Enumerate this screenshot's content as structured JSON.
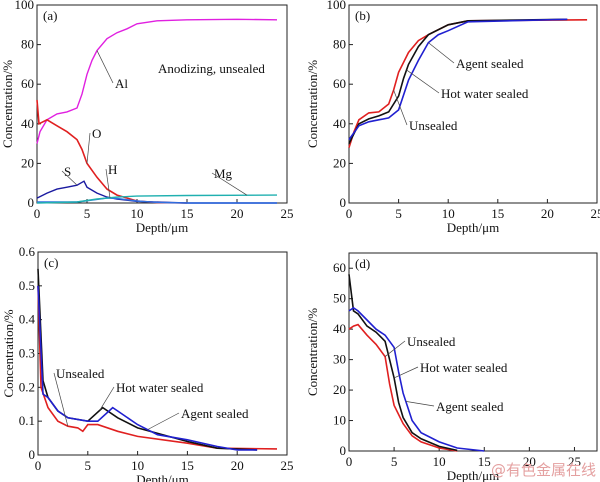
{
  "watermark": "@有色金属在线",
  "colors": {
    "Al": "#e020e0",
    "O": "#e02020",
    "S": "#1a1aa0",
    "H": "#3070e0",
    "Mg": "#20b0b0",
    "Unsealed": "#e02020",
    "Hot water sealed": "#111111",
    "Agent sealed": "#2020d0"
  },
  "chart_data": [
    {
      "type": "line",
      "panel_label": "(a)",
      "annotation": "Anodizing, unsealed",
      "xlabel": "Depth/μm",
      "ylabel": "Concentration/%",
      "xlim": [
        0,
        25
      ],
      "ylim": [
        0,
        100
      ],
      "xticks": [
        0,
        5,
        10,
        15,
        20,
        25
      ],
      "yticks": [
        0,
        20,
        40,
        60,
        80,
        100
      ],
      "grid": false,
      "series": [
        {
          "name": "Al",
          "x": [
            0,
            0.3,
            1,
            2,
            3,
            4,
            4.5,
            5,
            5.5,
            6,
            7,
            8,
            9,
            10,
            12,
            15,
            20,
            24
          ],
          "y": [
            30,
            36,
            42,
            45,
            46,
            48,
            55,
            65,
            72,
            77,
            83,
            86,
            88,
            90.5,
            92,
            92.5,
            92.8,
            92.5
          ]
        },
        {
          "name": "O",
          "x": [
            0,
            0.2,
            1,
            2,
            3,
            4,
            4.5,
            5,
            6,
            7,
            8,
            10,
            12,
            15
          ],
          "y": [
            52,
            40,
            42,
            39,
            36,
            32,
            27,
            20,
            13,
            7,
            4,
            1,
            0.2,
            0
          ]
        },
        {
          "name": "S",
          "x": [
            0,
            1,
            2,
            3,
            4,
            4.7,
            5,
            6,
            7,
            8,
            10,
            15,
            24
          ],
          "y": [
            2.5,
            5,
            7,
            8,
            9,
            11,
            8,
            5,
            3,
            2,
            0.8,
            0,
            0
          ]
        },
        {
          "name": "H",
          "x": [
            0,
            4,
            6,
            7,
            8,
            10,
            12,
            15,
            24
          ],
          "y": [
            0.5,
            0.5,
            1.8,
            2.5,
            2.3,
            1,
            0.3,
            0,
            0
          ]
        },
        {
          "name": "Mg",
          "x": [
            0,
            4,
            6,
            8,
            10,
            15,
            24
          ],
          "y": [
            0,
            0.5,
            2,
            3,
            3.5,
            3.8,
            4
          ]
        }
      ]
    },
    {
      "type": "line",
      "panel_label": "(b)",
      "xlabel": "Depth/μm",
      "ylabel": "Concentration/%",
      "xlim": [
        0,
        25
      ],
      "ylim": [
        0,
        100
      ],
      "xticks": [
        0,
        5,
        10,
        15,
        20,
        25
      ],
      "yticks": [
        0,
        20,
        40,
        60,
        80,
        100
      ],
      "grid": false,
      "series": [
        {
          "name": "Unsealed",
          "x": [
            0,
            0.5,
            1,
            2,
            3,
            4,
            4.5,
            5,
            6,
            7,
            8,
            10,
            12,
            24
          ],
          "y": [
            28,
            36,
            42,
            45.5,
            46,
            50,
            57,
            66,
            76,
            82,
            85,
            90,
            92,
            92.5
          ]
        },
        {
          "name": "Hot water sealed",
          "x": [
            0,
            1,
            2,
            3,
            4,
            5,
            5.5,
            6,
            7,
            8,
            10,
            12,
            22
          ],
          "y": [
            30,
            40,
            42.5,
            44,
            46,
            54,
            63,
            70,
            79,
            85,
            90,
            92,
            92.8
          ]
        },
        {
          "name": "Agent sealed",
          "x": [
            0,
            1,
            2,
            3,
            4,
            5,
            6,
            7,
            8,
            9,
            10,
            12,
            22
          ],
          "y": [
            32,
            39,
            41,
            42,
            43,
            47,
            62,
            72,
            81,
            85,
            87,
            91.5,
            92.8
          ]
        }
      ]
    },
    {
      "type": "line",
      "panel_label": "(c)",
      "xlabel": "Depth/μm",
      "ylabel": "Concentration/%",
      "xlim": [
        0,
        25
      ],
      "ylim": [
        0,
        0.6
      ],
      "xticks": [
        0,
        5,
        10,
        15,
        20,
        25
      ],
      "yticks": [
        0,
        0.1,
        0.2,
        0.3,
        0.4,
        0.5,
        0.6
      ],
      "grid": false,
      "series": [
        {
          "name": "Unsealed",
          "x": [
            0,
            0.3,
            1,
            2,
            3,
            4,
            4.5,
            5,
            6,
            8,
            10,
            15,
            18,
            24
          ],
          "y": [
            0.5,
            0.2,
            0.14,
            0.1,
            0.085,
            0.08,
            0.07,
            0.09,
            0.09,
            0.07,
            0.055,
            0.035,
            0.02,
            0.018
          ]
        },
        {
          "name": "Hot water sealed",
          "x": [
            0,
            0.5,
            1,
            2,
            3,
            5,
            6.5,
            8,
            10,
            15,
            18,
            22
          ],
          "y": [
            0.55,
            0.22,
            0.17,
            0.13,
            0.11,
            0.1,
            0.14,
            0.11,
            0.08,
            0.04,
            0.02,
            0.015
          ]
        },
        {
          "name": "Agent sealed",
          "x": [
            0,
            0.5,
            1,
            2,
            3,
            5,
            6,
            7.5,
            8,
            10,
            12,
            15,
            18,
            20,
            22
          ],
          "y": [
            0.5,
            0.18,
            0.17,
            0.13,
            0.11,
            0.1,
            0.1,
            0.14,
            0.13,
            0.09,
            0.06,
            0.045,
            0.025,
            0.015,
            0.015
          ]
        }
      ]
    },
    {
      "type": "line",
      "panel_label": "(d)",
      "xlabel": "Depth/μm",
      "ylabel": "Concentration/%",
      "xlim": [
        0,
        27.5
      ],
      "ylim": [
        0,
        65
      ],
      "xticks": [
        0,
        5,
        10,
        15,
        20,
        25
      ],
      "yticks": [
        0,
        10,
        20,
        30,
        40,
        50,
        60
      ],
      "grid": false,
      "series": [
        {
          "name": "Unsealed",
          "x": [
            0,
            0.5,
            1,
            2,
            3,
            4,
            4.5,
            5,
            6,
            7,
            8,
            10,
            12
          ],
          "y": [
            40,
            41,
            41.5,
            38,
            35,
            31,
            22,
            15,
            9,
            5,
            3,
            1,
            0
          ]
        },
        {
          "name": "Hot water sealed",
          "x": [
            0,
            0.5,
            1,
            2,
            3,
            4,
            5,
            5.5,
            6,
            7,
            8,
            10,
            12
          ],
          "y": [
            58,
            46,
            45,
            41,
            39,
            36,
            24,
            16,
            11,
            6,
            4,
            1.5,
            0.2
          ]
        },
        {
          "name": "Agent sealed",
          "x": [
            0,
            0.5,
            1,
            2,
            3,
            4,
            5,
            5.5,
            6,
            7,
            8,
            10,
            12,
            15
          ],
          "y": [
            46,
            47,
            46,
            43,
            40,
            38,
            34,
            26,
            19,
            10,
            6,
            3,
            1,
            0
          ]
        }
      ]
    }
  ]
}
